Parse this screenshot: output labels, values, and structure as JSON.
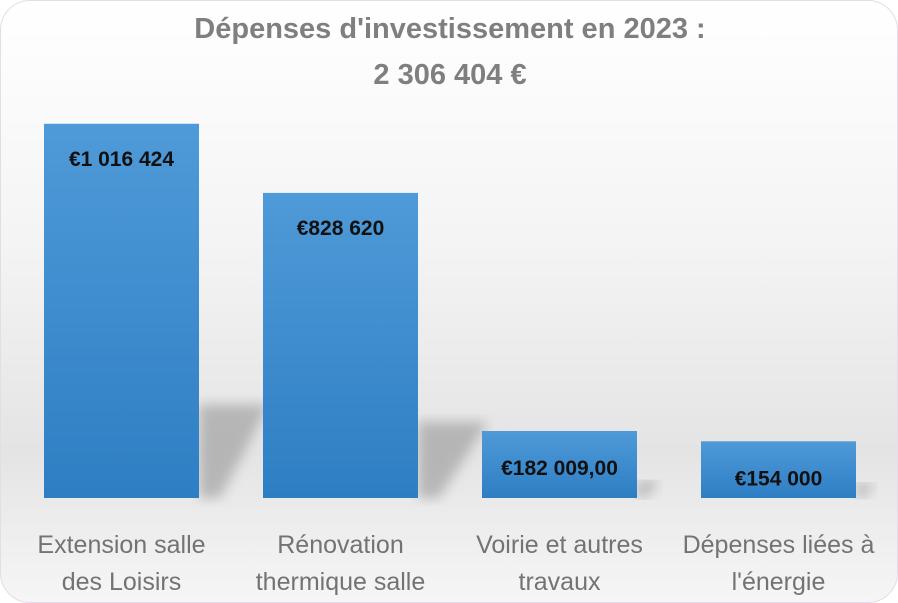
{
  "chart_data": {
    "type": "bar",
    "title": "Dépenses d'investissement en 2023 :",
    "subtitle": "2 306 404 €",
    "categories": [
      [
        "Extension salle",
        "des Loisirs"
      ],
      [
        "Rénovation",
        "thermique salle"
      ],
      [
        "Voirie et autres",
        "travaux"
      ],
      [
        "Dépenses liées à",
        "l'énergie"
      ]
    ],
    "values": [
      1016424,
      828620,
      182009,
      154000
    ],
    "data_labels": [
      "€1 016 424",
      "€828 620",
      "€182 009,00",
      "€154 000"
    ],
    "ylim": [
      0,
      1100000
    ],
    "grid": false,
    "legend": "none",
    "colors": {
      "bar_top": "#4f9ad8",
      "bar_bottom": "#2e7ec4",
      "title": "#7f7f7f",
      "label": "#737373",
      "data_label": "#111111"
    }
  }
}
